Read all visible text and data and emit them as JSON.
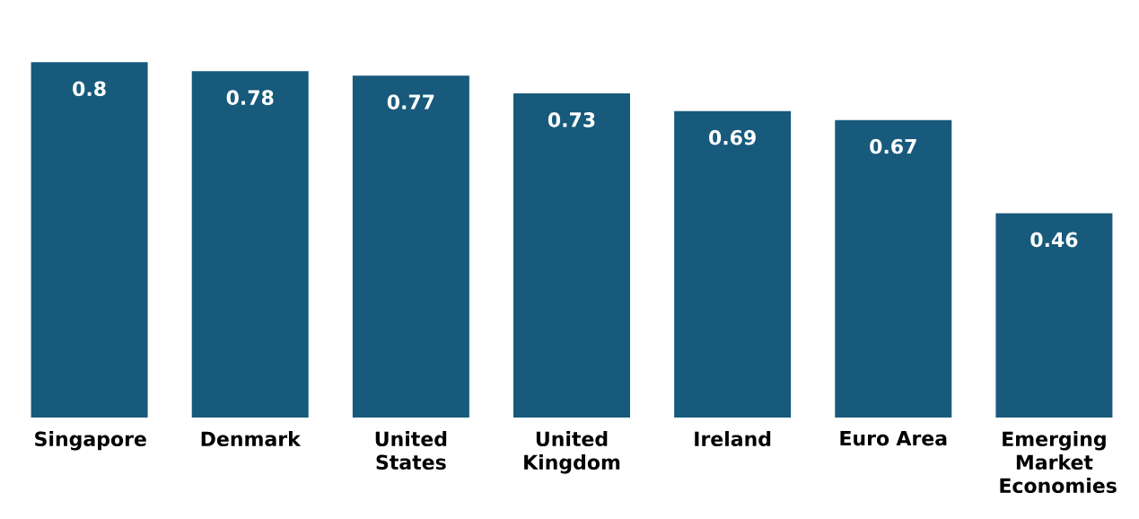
{
  "chart_data": {
    "type": "bar",
    "categories": [
      "Singapore",
      "Denmark",
      "United States",
      "United Kingdom",
      "Ireland",
      "Euro Area",
      "Emerging Market Economies"
    ],
    "values": [
      0.8,
      0.78,
      0.77,
      0.73,
      0.69,
      0.67,
      0.46
    ],
    "color": "#175a7b",
    "data_labels": true
  }
}
